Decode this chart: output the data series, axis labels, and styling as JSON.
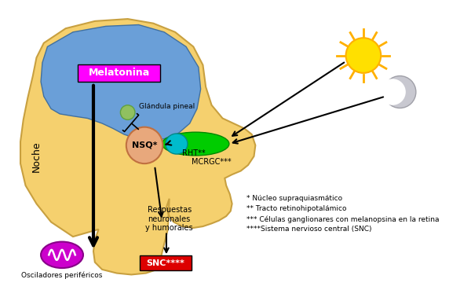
{
  "bg_color": "#FFFFFF",
  "head_skin_color": "#F5D06E",
  "brain_color": "#6A9FD8",
  "melatonina_bg": "#FF00FF",
  "melatonina_text": "Melatonina",
  "glandula_text": "Glándula pineal",
  "noche_text": "Noche",
  "nsq_color": "#E8A87C",
  "nsq_text": "NSQ*",
  "rht_text": "RHT**",
  "mcrgc_text": "MCRGC***",
  "snc_bg": "#DD0000",
  "snc_text": "SNC****",
  "osc_text": "Osciladores periféricos",
  "resp_text": "Respuestas\nneuronales\ny humorales",
  "legend1": "* Núcleo supraquiasmático",
  "legend2": "** Tracto retinohipotalámico",
  "legend3": "*** Células ganglionares con melanopsina en la retina",
  "legend4": "****Sistema nervioso central (SNC)",
  "sun_color": "#FFE000",
  "moon_color": "#C8C8D0",
  "green_color": "#00CC00",
  "cyan_color": "#00BBCC",
  "purple_color": "#CC00CC",
  "glandula_color": "#90C060"
}
